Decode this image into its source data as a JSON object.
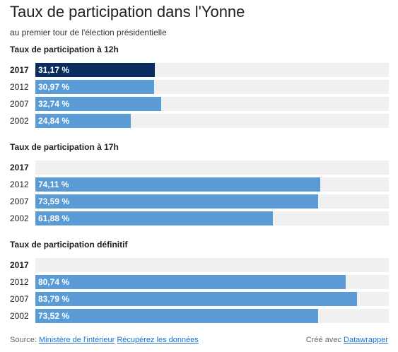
{
  "chart_data": {
    "type": "bar",
    "title": "Taux de participation dans l'Yonne",
    "subtitle": "au premier tour de l'élection présidentielle",
    "highlight_color": "#0a2c5e",
    "bar_color": "#5b9bd5",
    "track_color": "#f0f0f0",
    "xlim": [
      0,
      92
    ],
    "groups": [
      {
        "title": "Taux de participation à 12h",
        "rows": [
          {
            "label": "2017",
            "value": 31.17,
            "display": "31,17 %",
            "highlight": true
          },
          {
            "label": "2012",
            "value": 30.97,
            "display": "30,97 %",
            "highlight": false
          },
          {
            "label": "2007",
            "value": 32.74,
            "display": "32,74 %",
            "highlight": false
          },
          {
            "label": "2002",
            "value": 24.84,
            "display": "24,84 %",
            "highlight": false
          }
        ]
      },
      {
        "title": "Taux de participation à 17h",
        "rows": [
          {
            "label": "2017",
            "value": null,
            "display": "",
            "highlight": true
          },
          {
            "label": "2012",
            "value": 74.11,
            "display": "74,11 %",
            "highlight": false
          },
          {
            "label": "2007",
            "value": 73.59,
            "display": "73,59 %",
            "highlight": false
          },
          {
            "label": "2002",
            "value": 61.88,
            "display": "61,88 %",
            "highlight": false
          }
        ]
      },
      {
        "title": "Taux de participation définitif",
        "rows": [
          {
            "label": "2017",
            "value": null,
            "display": "",
            "highlight": true
          },
          {
            "label": "2012",
            "value": 80.74,
            "display": "80,74 %",
            "highlight": false
          },
          {
            "label": "2007",
            "value": 83.79,
            "display": "83,79 %",
            "highlight": false
          },
          {
            "label": "2002",
            "value": 73.52,
            "display": "73,52 %",
            "highlight": false
          }
        ]
      }
    ]
  },
  "footer": {
    "source_prefix": "Source:",
    "source_link": "Ministère de l'intérieur",
    "download_link": "Récupérez les données",
    "made_with": "Créé avec",
    "tool_link": "Datawrapper"
  }
}
